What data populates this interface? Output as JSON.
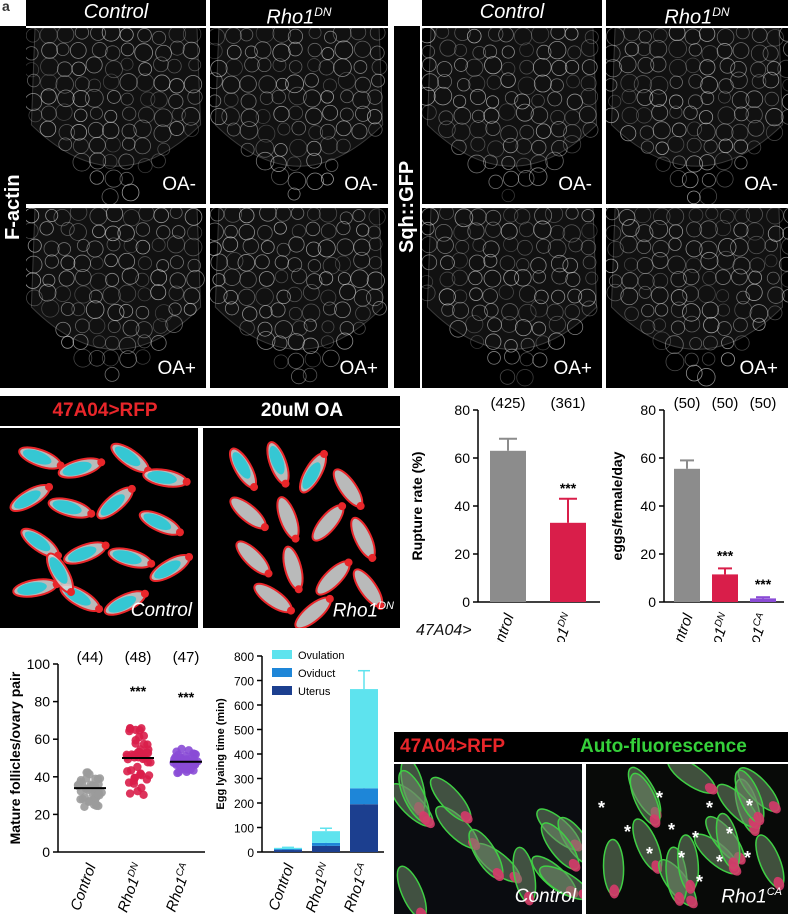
{
  "panel_a": {
    "corner_mark": "a",
    "left_group": {
      "control_header": "Control",
      "rho_header": "Rho1",
      "rho_sup": "DN",
      "side_label": "F-actin"
    },
    "right_group": {
      "control_header": "Control",
      "rho_header": "Rho1",
      "rho_sup": "DN",
      "side_label": "Sqh::GFP"
    },
    "oa_minus": "OA-",
    "oa_plus": "OA+"
  },
  "panel_b": {
    "left_title": "47A04>RFP",
    "right_title": "20uM OA",
    "control_caption": "Control",
    "rho_caption": "Rho1",
    "rho_sup": "DN",
    "colors": {
      "red": "#e8262a",
      "cyan": "#27c9d6"
    }
  },
  "panel_d": {
    "left_title": "47A04>RFP",
    "right_title": "Auto-fluorescence",
    "control_caption": "Control",
    "rho_caption": "Rho1",
    "rho_sup": "CA",
    "asterisk": "*"
  },
  "genotype_prefix": "47A04>",
  "chart_data": [
    {
      "type": "bar",
      "categories": [
        "Control",
        "Rho1DN"
      ],
      "category_labels": [
        {
          "base": "Control",
          "sup": ""
        },
        {
          "base": "Rho1",
          "sup": "DN"
        }
      ],
      "values": [
        63,
        33
      ],
      "errors": [
        5,
        10
      ],
      "n_labels": [
        "(425)",
        "(361)"
      ],
      "significance": [
        "",
        "***"
      ],
      "ylabel": "Rupture rate (%)",
      "ylim": [
        0,
        80
      ],
      "yticks": [
        0,
        20,
        40,
        60,
        80
      ],
      "colors": [
        "#8c8c8c",
        "#d91e4a"
      ]
    },
    {
      "type": "bar",
      "categories": [
        "Control",
        "Rho1DN",
        "Rho1CA"
      ],
      "category_labels": [
        {
          "base": "Control",
          "sup": ""
        },
        {
          "base": "Rho1",
          "sup": "DN"
        },
        {
          "base": "Rho1",
          "sup": "CA"
        }
      ],
      "values": [
        55.5,
        11.5,
        1.5
      ],
      "errors": [
        3.5,
        2.5,
        0.5
      ],
      "n_labels": [
        "(50)",
        "(50)",
        "(50)"
      ],
      "significance": [
        "",
        "***",
        "***"
      ],
      "ylabel": "eggs/female/day",
      "ylim": [
        0,
        80
      ],
      "yticks": [
        0,
        20,
        40,
        60,
        80
      ],
      "colors": [
        "#8c8c8c",
        "#d91e4a",
        "#8a4bd6"
      ]
    },
    {
      "type": "scatter",
      "categories": [
        "Control",
        "Rho1DN",
        "Rho1CA"
      ],
      "category_labels": [
        {
          "base": "Control",
          "sup": ""
        },
        {
          "base": "Rho1",
          "sup": "DN"
        },
        {
          "base": "Rho1",
          "sup": "CA"
        }
      ],
      "means": [
        34,
        50,
        48
      ],
      "sd": [
        8,
        18,
        6
      ],
      "counts": [
        44,
        48,
        47
      ],
      "n_labels": [
        "(44)",
        "(48)",
        "(47)"
      ],
      "significance": [
        "",
        "***",
        "***"
      ],
      "ylabel": "Mature follicles/ovary pair",
      "ylim": [
        0,
        100
      ],
      "yticks": [
        0,
        20,
        40,
        60,
        80,
        100
      ],
      "colors": [
        "#9b9b9b",
        "#d91e4a",
        "#8a4bd6"
      ]
    },
    {
      "type": "bar",
      "stacked": true,
      "categories": [
        "Control",
        "Rho1DN",
        "Rho1CA"
      ],
      "category_labels": [
        {
          "base": "Control",
          "sup": ""
        },
        {
          "base": "Rho1",
          "sup": "DN"
        },
        {
          "base": "Rho1",
          "sup": "CA"
        }
      ],
      "series": [
        {
          "name": "Uterus",
          "values": [
            8,
            25,
            195
          ],
          "errors": [
            2,
            5,
            40
          ],
          "color": "#1c3f8f"
        },
        {
          "name": "Oviduct",
          "values": [
            4,
            12,
            65
          ],
          "errors": [
            1,
            5,
            45
          ],
          "color": "#1e86d8"
        },
        {
          "name": "Ovulation",
          "values": [
            5,
            48,
            405
          ],
          "errors": [
            2,
            12,
            75
          ],
          "color": "#5ee3ee"
        }
      ],
      "legend_order": [
        "Ovulation",
        "Oviduct",
        "Uterus"
      ],
      "ylabel": "Egg lyaing time (min)",
      "ylim": [
        0,
        800
      ],
      "yticks": [
        0,
        100,
        200,
        300,
        400,
        500,
        600,
        700,
        800
      ],
      "legend": "top-left"
    }
  ]
}
